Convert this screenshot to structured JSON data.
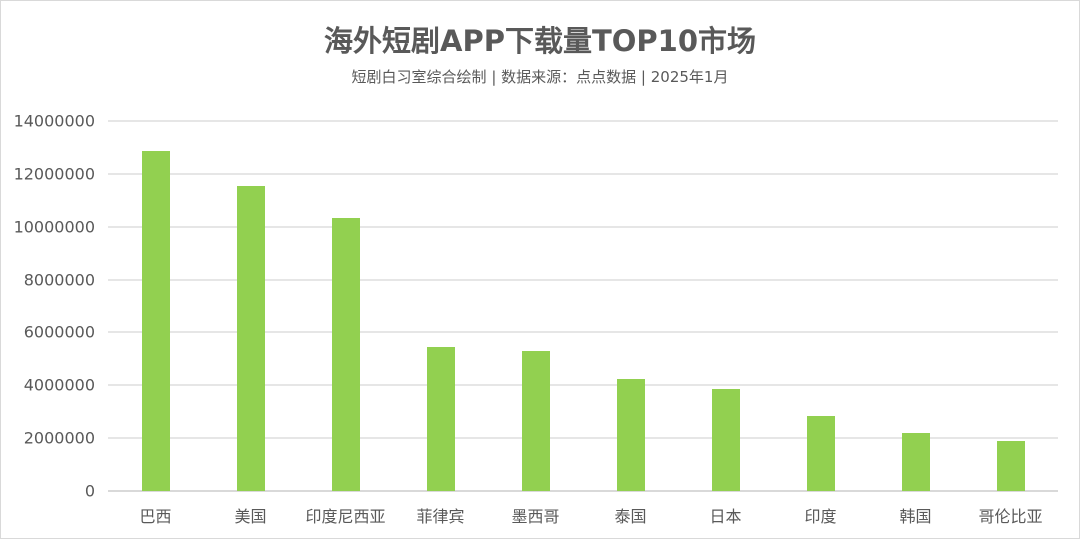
{
  "title": "海外短剧APP下载量TOP10市场",
  "subtitle": "短剧白习室综合绘制 | 数据来源：点点数据  |  2025年1月",
  "colors": {
    "bar": "#92d050",
    "grid": "#e6e6e6",
    "text": "#595959"
  },
  "yticks": [
    "0",
    "2000000",
    "4000000",
    "6000000",
    "8000000",
    "10000000",
    "12000000",
    "14000000"
  ],
  "chart_data": {
    "type": "bar",
    "title": "海外短剧APP下载量TOP10市场",
    "subtitle": "短剧白习室综合绘制 | 数据来源：点点数据  |  2025年1月",
    "categories": [
      "巴西",
      "美国",
      "印度尼西亚",
      "菲律宾",
      "墨西哥",
      "泰国",
      "日本",
      "印度",
      "韩国",
      "哥伦比亚"
    ],
    "values": [
      12860000,
      11540000,
      10330000,
      5450000,
      5300000,
      4240000,
      3860000,
      2840000,
      2190000,
      1890000
    ],
    "xlabel": "",
    "ylabel": "",
    "ylim": [
      0,
      14000000
    ],
    "ytick_step": 2000000,
    "grid": true,
    "legend": "none"
  }
}
